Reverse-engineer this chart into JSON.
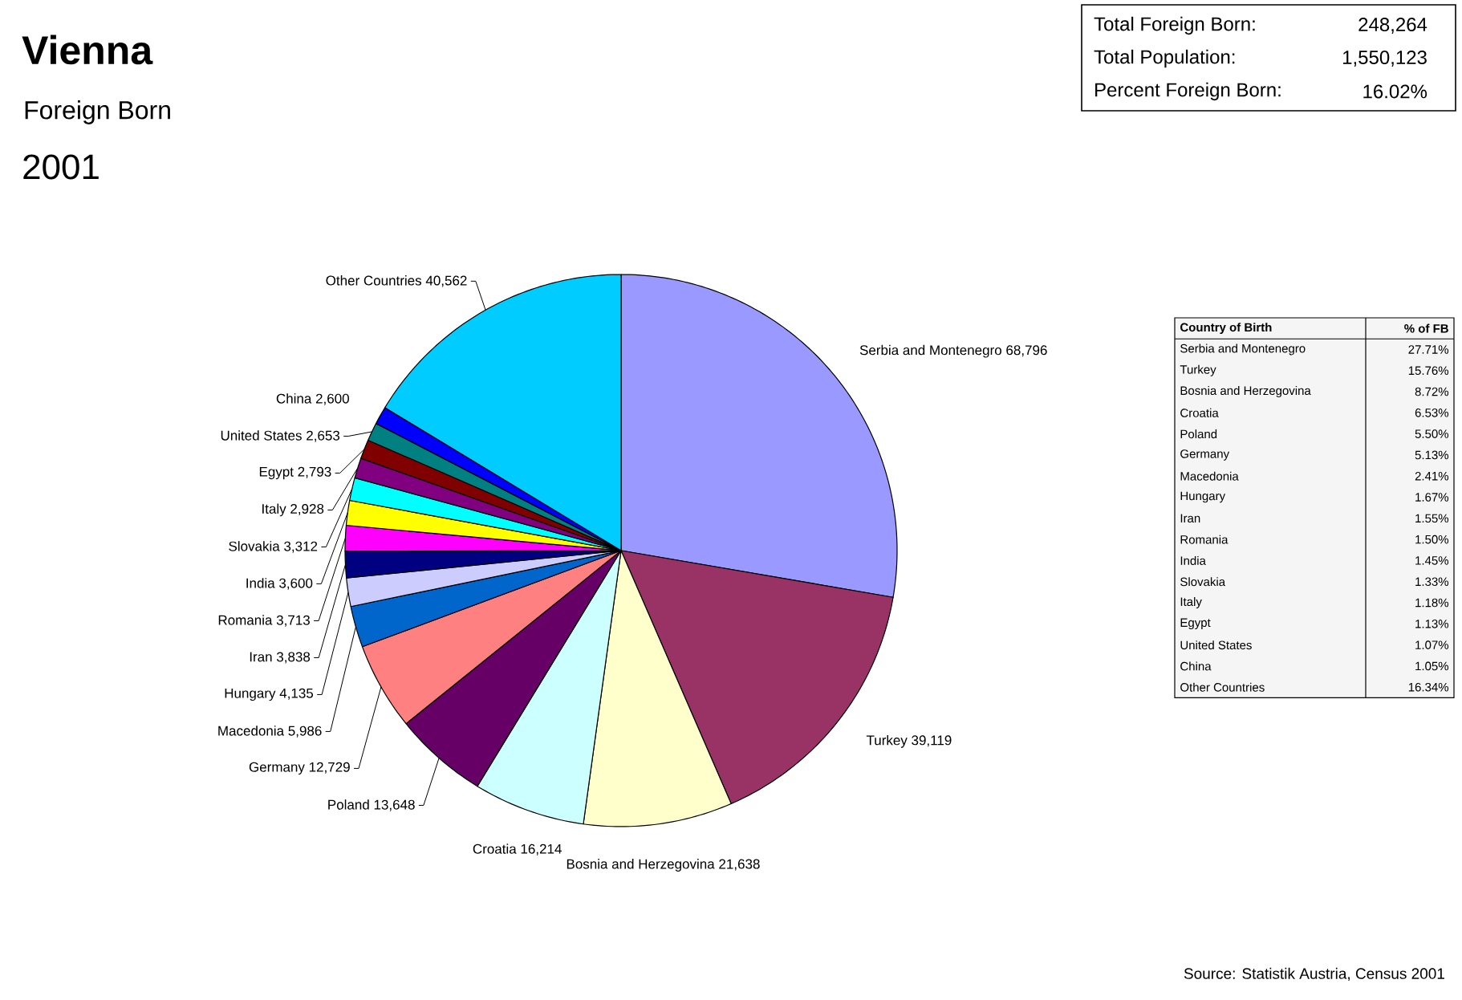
{
  "chart_data": [
    {
      "type": "pie",
      "title": "Vienna",
      "subtitle": "Foreign Born",
      "categories": [
        "Serbia and Montenegro",
        "Turkey",
        "Bosnia and Herzegovina",
        "Croatia",
        "Poland",
        "Germany",
        "Macedonia",
        "Hungary",
        "Iran",
        "Romania",
        "India",
        "Slovakia",
        "Italy",
        "Egypt",
        "United States",
        "China",
        "Other Countries"
      ],
      "values": [
        68796,
        39119,
        21638,
        16214,
        13648,
        12729,
        5986,
        4135,
        3838,
        3713,
        3600,
        3312,
        2928,
        2793,
        2653,
        2600,
        40562
      ],
      "value_labels": [
        "68,796",
        "39,119",
        "21,638",
        "16,214",
        "13,648",
        "12,729",
        "5,986",
        "4,135",
        "3,838",
        "3,713",
        "3,600",
        "3,312",
        "2,928",
        "2,793",
        "2,653",
        "2,600",
        "40,562"
      ],
      "colors": [
        "#9999ff",
        "#993366",
        "#ffffcc",
        "#ccffff",
        "#660066",
        "#ff8080",
        "#0066cc",
        "#ccccff",
        "#000080",
        "#ff00ff",
        "#ffff00",
        "#00ffff",
        "#800080",
        "#800000",
        "#008080",
        "#0000ff",
        "#00ccff"
      ],
      "annotations": [
        "2001",
        "Total Foreign Born:",
        "248,264",
        "Total Population:",
        "1,550,123",
        "Percent Foreign Born:",
        "16.02%",
        "Source: Statistik Austria, Census 2001"
      ]
    },
    {
      "type": "other",
      "categories": [
        "Serbia and Montenegro",
        "Turkey",
        "Bosnia and Herzegovina",
        "Croatia",
        "Poland",
        "Germany",
        "Macedonia",
        "Hungary",
        "Iran",
        "Romania",
        "India",
        "Slovakia",
        "Italy",
        "Egypt",
        "United States",
        "China",
        "Other Countries"
      ],
      "values": [
        27.71,
        15.76,
        8.72,
        6.53,
        5.5,
        5.13,
        2.41,
        1.67,
        1.55,
        1.5,
        1.45,
        1.33,
        1.18,
        1.13,
        1.07,
        1.05,
        16.34
      ],
      "value_labels": [
        "27.71%",
        "15.76%",
        "8.72%",
        "6.53%",
        "5.50%",
        "5.13%",
        "2.41%",
        "1.67%",
        "1.55%",
        "1.50%",
        "1.45%",
        "1.33%",
        "1.18%",
        "1.13%",
        "1.07%",
        "1.05%",
        "16.34%"
      ],
      "annotations": [
        "Country of Birth",
        "% of FB"
      ]
    }
  ]
}
